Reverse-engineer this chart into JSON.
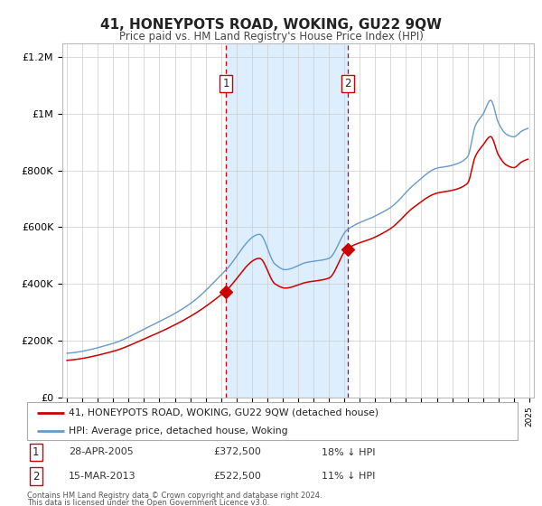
{
  "title": "41, HONEYPOTS ROAD, WOKING, GU22 9QW",
  "subtitle": "Price paid vs. HM Land Registry's House Price Index (HPI)",
  "red_label": "41, HONEYPOTS ROAD, WOKING, GU22 9QW (detached house)",
  "blue_label": "HPI: Average price, detached house, Woking",
  "event1_date": "28-APR-2005",
  "event1_price": 372500,
  "event1_pct": "18%",
  "event2_date": "15-MAR-2013",
  "event2_price": 522500,
  "event2_pct": "11%",
  "footer1": "Contains HM Land Registry data © Crown copyright and database right 2024.",
  "footer2": "This data is licensed under the Open Government Licence v3.0.",
  "ylim": [
    0,
    1250000
  ],
  "yticks": [
    0,
    200000,
    400000,
    600000,
    800000,
    1000000,
    1200000
  ],
  "ytick_labels": [
    "£0",
    "£200K",
    "£400K",
    "£600K",
    "£800K",
    "£1M",
    "£1.2M"
  ],
  "red_color": "#cc0000",
  "blue_color": "#6699cc",
  "shade_color": "#ddeeff",
  "bg_color": "#ffffff",
  "grid_color": "#cccccc",
  "event1_year": 2005.32,
  "event2_year": 2013.21
}
